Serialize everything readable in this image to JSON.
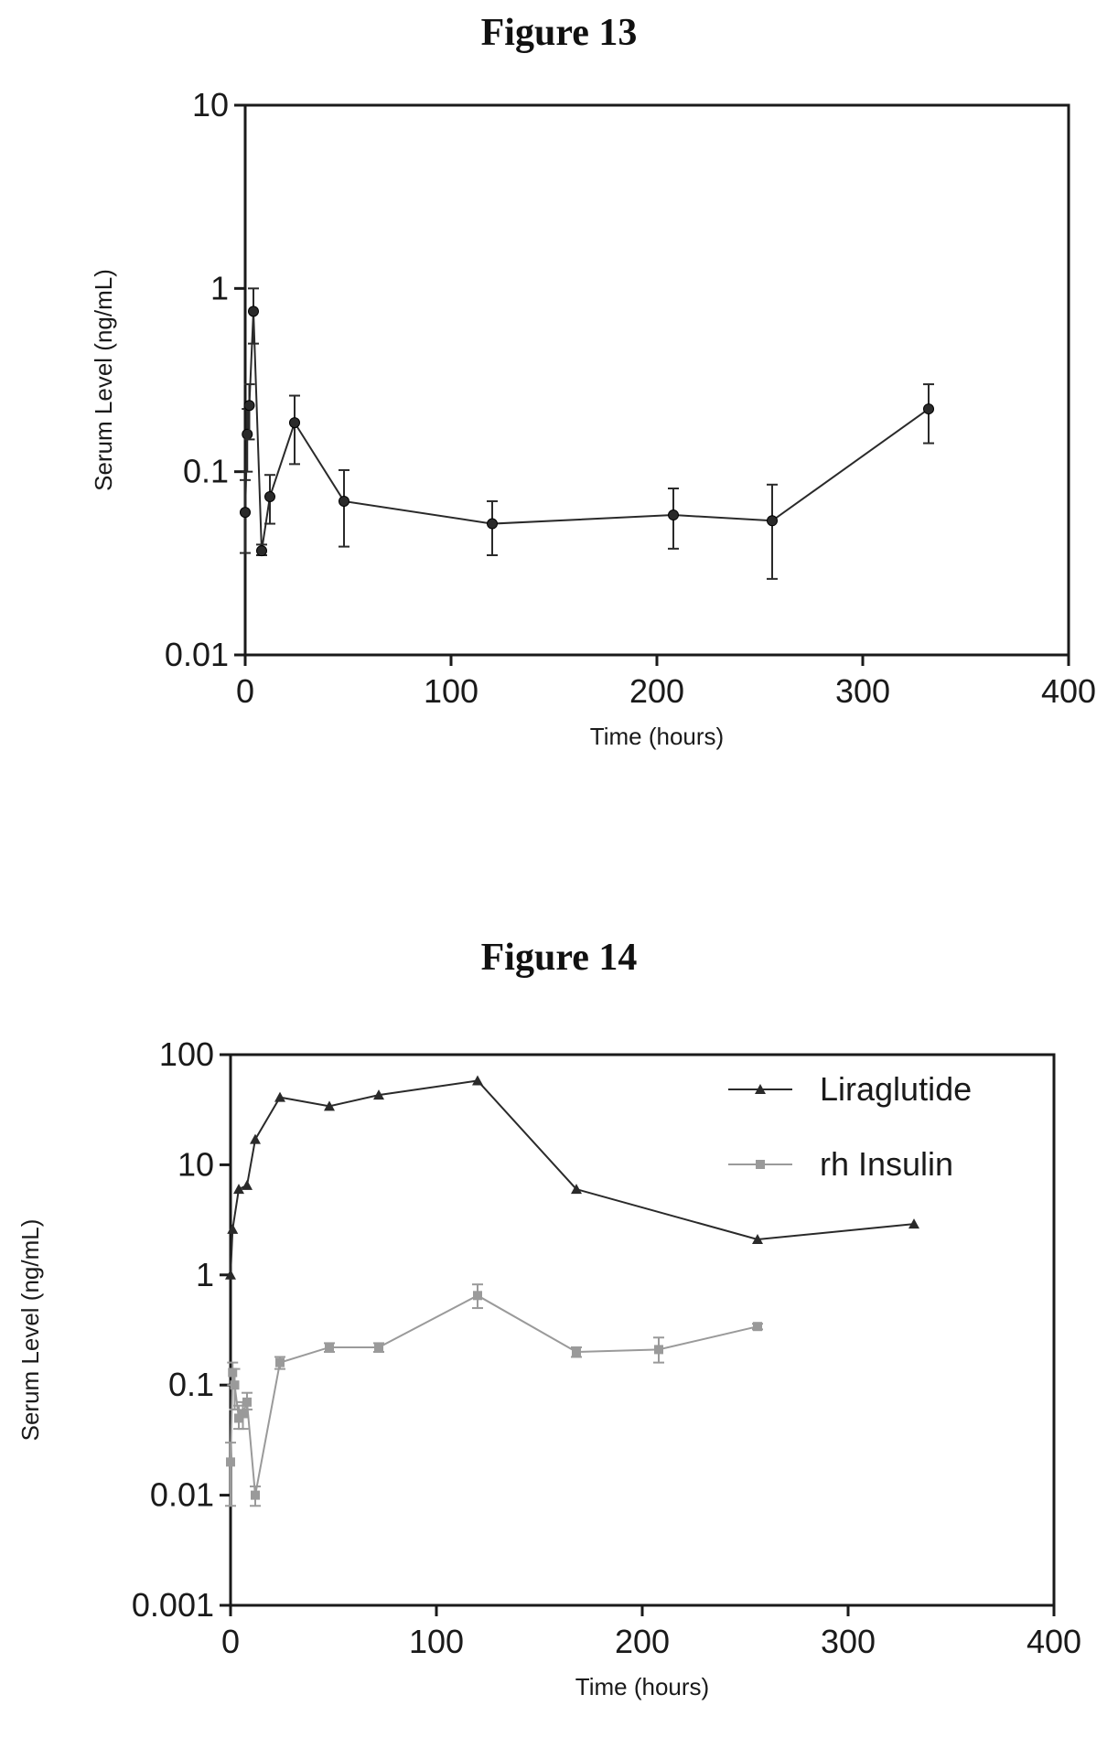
{
  "figures": [
    {
      "title": "Figure 13"
    },
    {
      "title": "Figure 14"
    }
  ],
  "chart_data": [
    {
      "type": "line",
      "title": "Figure 13",
      "xlabel": "Time (hours)",
      "ylabel": "Serum Level (ng/mL)",
      "xlim": [
        0,
        400
      ],
      "ylim": [
        0.01,
        10
      ],
      "yscale": "log",
      "xticks": [
        "0",
        "100",
        "200",
        "300",
        "400"
      ],
      "yticks": [
        "0.01",
        "0.1",
        "1",
        "10"
      ],
      "grid": false,
      "series": [
        {
          "color": "#2a2a2a",
          "marker": "circle",
          "x": [
            0,
            1,
            2,
            4,
            8,
            12,
            24,
            48,
            120,
            208,
            256,
            332
          ],
          "y": [
            0.06,
            0.16,
            0.23,
            0.75,
            0.037,
            0.073,
            0.185,
            0.069,
            0.052,
            0.058,
            0.054,
            0.22
          ],
          "err_low": [
            0.036,
            0.1,
            0.15,
            0.5,
            0.035,
            0.052,
            0.11,
            0.039,
            0.035,
            0.038,
            0.026,
            0.143
          ],
          "err_high": [
            0.09,
            0.22,
            0.3,
            1.0,
            0.04,
            0.096,
            0.26,
            0.102,
            0.069,
            0.081,
            0.085,
            0.3
          ]
        }
      ]
    },
    {
      "type": "line",
      "title": "Figure 14",
      "xlabel": "Time (hours)",
      "ylabel": "Serum Level (ng/mL)",
      "xlim": [
        0,
        400
      ],
      "ylim": [
        0.001,
        100
      ],
      "yscale": "log",
      "xticks": [
        "0",
        "100",
        "200",
        "300",
        "400"
      ],
      "yticks": [
        "0.001",
        "0.01",
        "0.1",
        "1",
        "10",
        "100"
      ],
      "grid": false,
      "legend": "top-right",
      "series": [
        {
          "name": "Liraglutide",
          "color": "#2a2a2a",
          "marker": "triangle",
          "x": [
            0,
            1,
            4,
            8,
            12,
            24,
            48,
            72,
            120,
            168,
            256,
            332
          ],
          "y": [
            1.0,
            2.6,
            6.0,
            6.5,
            17,
            41,
            34,
            43,
            58,
            6.0,
            2.1,
            2.9
          ]
        },
        {
          "name": "rh Insulin",
          "color": "#9a9a9a",
          "marker": "square",
          "x": [
            0,
            1,
            2,
            4,
            6,
            8,
            12,
            24,
            48,
            72,
            120,
            168,
            208,
            256
          ],
          "y": [
            0.02,
            0.13,
            0.1,
            0.05,
            0.055,
            0.07,
            0.01,
            0.16,
            0.22,
            0.22,
            0.65,
            0.2,
            0.21,
            0.34
          ],
          "err_low": [
            0.008,
            0.1,
            0.06,
            0.04,
            0.04,
            0.06,
            0.008,
            0.14,
            0.2,
            0.2,
            0.5,
            0.18,
            0.16,
            0.32
          ],
          "err_high": [
            0.03,
            0.16,
            0.14,
            0.065,
            0.07,
            0.085,
            0.012,
            0.18,
            0.24,
            0.24,
            0.82,
            0.22,
            0.27,
            0.36
          ]
        }
      ]
    }
  ]
}
